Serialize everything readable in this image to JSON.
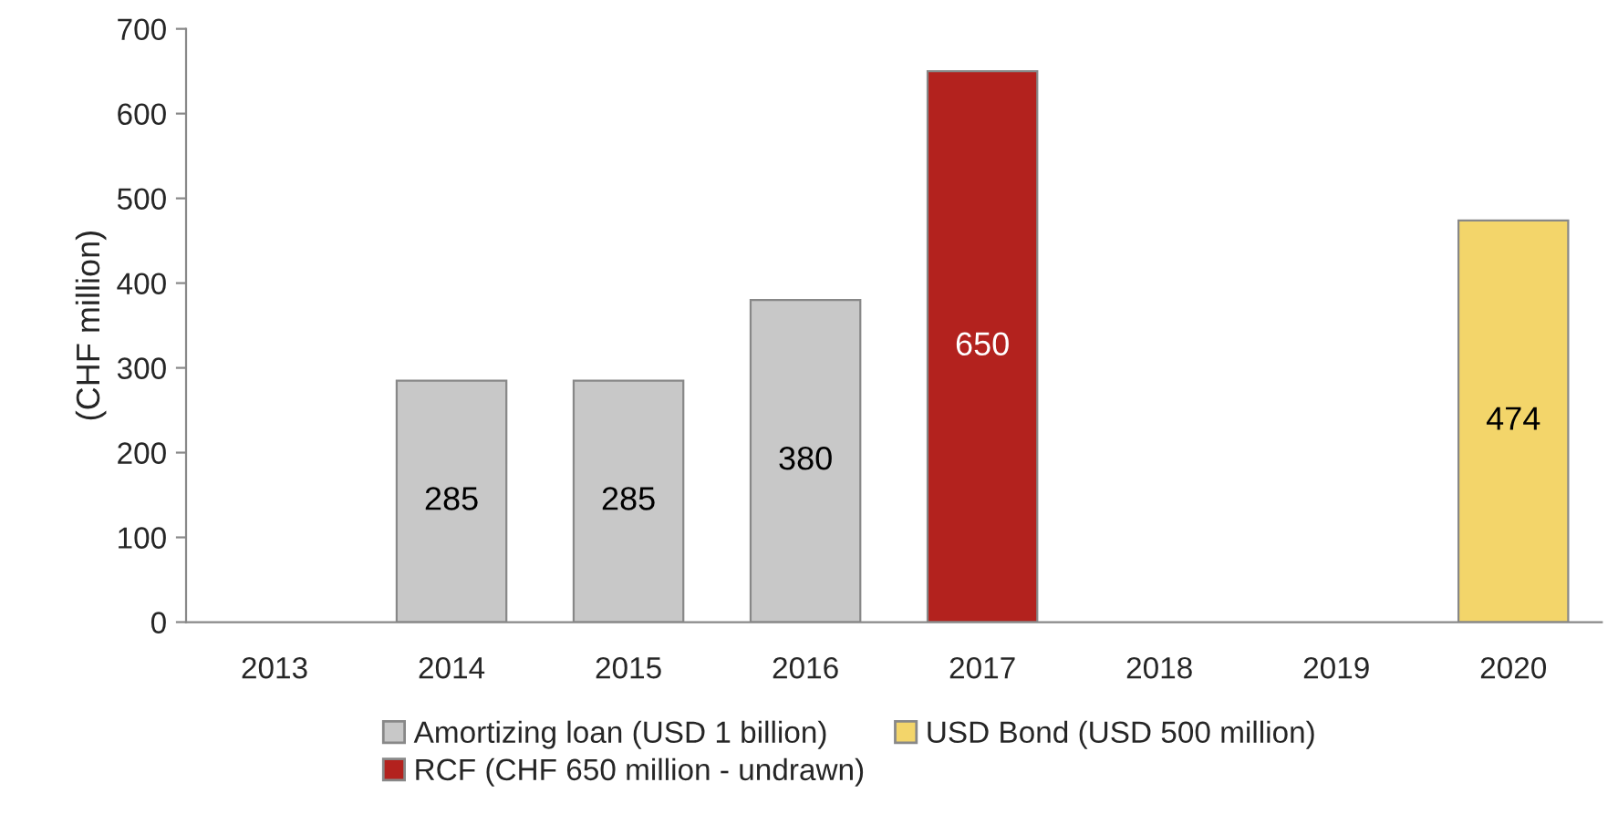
{
  "chart_data": {
    "type": "bar",
    "ylabel": "(CHF million)",
    "categories": [
      "2013",
      "2014",
      "2015",
      "2016",
      "2017",
      "2018",
      "2019",
      "2020"
    ],
    "series": [
      {
        "name": "Amortizing loan (USD 1 billion)",
        "color": "#c8c8c8",
        "values": [
          null,
          285,
          285,
          380,
          null,
          null,
          null,
          null
        ]
      },
      {
        "name": "USD Bond (USD 500 million)",
        "color": "#f3d56a",
        "values": [
          null,
          null,
          null,
          null,
          null,
          null,
          null,
          474
        ]
      },
      {
        "name": "RCF (CHF 650 million - undrawn)",
        "color": "#b3221e",
        "values": [
          null,
          null,
          null,
          null,
          650,
          null,
          null,
          null
        ]
      }
    ],
    "ylim": [
      0,
      700
    ],
    "yticks": [
      0,
      100,
      200,
      300,
      400,
      500,
      600,
      700
    ],
    "grid": false,
    "legend": "bottom",
    "data_labels": true
  }
}
